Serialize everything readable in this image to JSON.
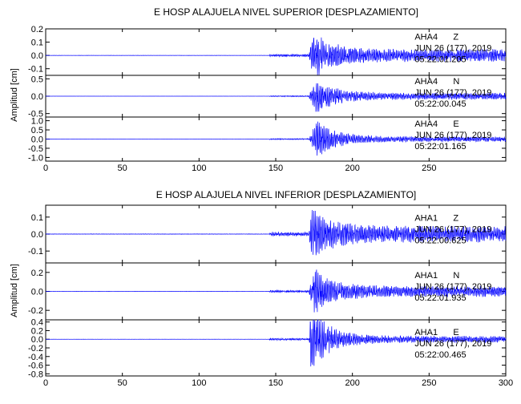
{
  "chart_data": [
    {
      "type": "line",
      "title": "E HOSP ALAJUELA NIVEL SUPERIOR [DESPLAZAMIENTO]",
      "ylabel": "Amplitud [cm]",
      "xlabel": "",
      "xlim": [
        0,
        300
      ],
      "x_ticks": [
        0,
        50,
        100,
        150,
        200,
        250
      ],
      "grid": false,
      "color": "#0000ff",
      "panels": [
        {
          "station": "AHA4",
          "component": "Z",
          "date": "JUN 26 (177), 2019",
          "time": "05:22:01.205",
          "ylim": [
            -0.15,
            0.2
          ],
          "y_ticks": [
            -0.1,
            0.0,
            0.1,
            0.2
          ],
          "y_tick_labels": [
            "-0.1",
            "0.0",
            "0.1",
            "0.2"
          ],
          "noise_start": 146,
          "p_arrival": 172,
          "peak_time": 175,
          "peak_amplitude": 0.18,
          "coda_amplitude": 0.05,
          "pre_event_amplitude": 0.004
        },
        {
          "station": "AHA4",
          "component": "N",
          "date": "JUN 26 (177), 2019",
          "time": "05:22:00.045",
          "ylim": [
            -0.6,
            0.6
          ],
          "y_ticks": [
            -0.5,
            0.0,
            0.5
          ],
          "y_tick_labels": [
            "-0.5",
            "0.0",
            "0.5"
          ],
          "noise_start": 146,
          "p_arrival": 172,
          "peak_time": 177,
          "peak_amplitude": 0.55,
          "coda_amplitude": 0.1,
          "pre_event_amplitude": 0.005
        },
        {
          "station": "AHA4",
          "component": "E",
          "date": "JUN 26 (177), 2019",
          "time": "05:22:01.165",
          "ylim": [
            -1.2,
            1.2
          ],
          "y_ticks": [
            -1.0,
            -0.5,
            0.0,
            0.5,
            1.0
          ],
          "y_tick_labels": [
            "-1.0",
            "-0.5",
            "0.0",
            "0.5",
            "1.0"
          ],
          "noise_start": 146,
          "p_arrival": 172,
          "peak_time": 177,
          "peak_amplitude": 1.1,
          "coda_amplitude": 0.15,
          "pre_event_amplitude": 0.01
        }
      ]
    },
    {
      "type": "line",
      "title": "E HOSP ALAJUELA NIVEL INFERIOR [DESPLAZAMIENTO]",
      "ylabel": "Amplitud [cm]",
      "xlabel": "",
      "xlim": [
        0,
        300
      ],
      "x_ticks": [
        0,
        50,
        100,
        150,
        200,
        250,
        300
      ],
      "grid": false,
      "color": "#0000ff",
      "panels": [
        {
          "station": "AHA1",
          "component": "Z",
          "date": "JUN 26 (177), 2019",
          "time": "05:22:00.625",
          "ylim": [
            -0.17,
            0.17
          ],
          "y_ticks": [
            -0.1,
            0.0,
            0.1
          ],
          "y_tick_labels": [
            "-0.1",
            "0.0",
            "0.1"
          ],
          "noise_start": 146,
          "p_arrival": 172,
          "peak_time": 174,
          "peak_amplitude": 0.16,
          "coda_amplitude": 0.05,
          "pre_event_amplitude": 0.006
        },
        {
          "station": "AHA1",
          "component": "N",
          "date": "JUN 26 (177), 2019",
          "time": "05:22:01.935",
          "ylim": [
            -0.3,
            0.3
          ],
          "y_ticks": [
            -0.2,
            0.0,
            0.2
          ],
          "y_tick_labels": [
            "-0.2",
            "0.0",
            "0.2"
          ],
          "noise_start": 146,
          "p_arrival": 172,
          "peak_time": 175,
          "peak_amplitude": 0.27,
          "coda_amplitude": 0.06,
          "pre_event_amplitude": 0.005
        },
        {
          "station": "AHA1",
          "component": "E",
          "date": "JUN 26 (177), 2019",
          "time": "05:22:00.465",
          "ylim": [
            -0.85,
            0.45
          ],
          "y_ticks": [
            -0.8,
            -0.6,
            -0.4,
            -0.2,
            0.0,
            0.2,
            0.4
          ],
          "y_tick_labels": [
            "-0.8",
            "-0.6",
            "-0.4",
            "-0.2",
            "0.0",
            "0.2",
            "0.4"
          ],
          "noise_start": 146,
          "p_arrival": 172,
          "peak_time": 173,
          "peak_amplitude": 0.8,
          "coda_amplitude": 0.08,
          "pre_event_amplitude": 0.008
        }
      ]
    }
  ]
}
